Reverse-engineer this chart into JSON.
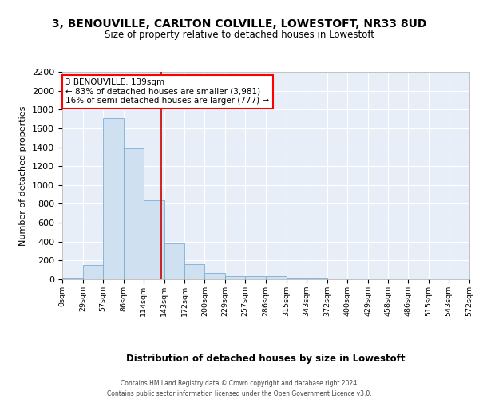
{
  "title": "3, BENOUVILLE, CARLTON COLVILLE, LOWESTOFT, NR33 8UD",
  "subtitle": "Size of property relative to detached houses in Lowestoft",
  "xlabel": "Distribution of detached houses by size in Lowestoft",
  "ylabel": "Number of detached properties",
  "bar_color": "#cfe0f0",
  "bar_edge_color": "#7aafd4",
  "background_color": "#e8eef8",
  "grid_color": "#ffffff",
  "bin_edges": [
    0,
    29,
    57,
    86,
    114,
    143,
    172,
    200,
    229,
    257,
    286,
    315,
    343,
    372,
    400,
    429,
    458,
    486,
    515,
    543,
    572
  ],
  "bar_heights": [
    15,
    155,
    1710,
    1390,
    840,
    380,
    165,
    65,
    35,
    30,
    30,
    20,
    15,
    0,
    0,
    0,
    0,
    0,
    0,
    0
  ],
  "tick_labels": [
    "0sqm",
    "29sqm",
    "57sqm",
    "86sqm",
    "114sqm",
    "143sqm",
    "172sqm",
    "200sqm",
    "229sqm",
    "257sqm",
    "286sqm",
    "315sqm",
    "343sqm",
    "372sqm",
    "400sqm",
    "429sqm",
    "458sqm",
    "486sqm",
    "515sqm",
    "543sqm",
    "572sqm"
  ],
  "red_line_x": 139,
  "annotation_title": "3 BENOUVILLE: 139sqm",
  "annotation_line1": "← 83% of detached houses are smaller (3,981)",
  "annotation_line2": "16% of semi-detached houses are larger (777) →",
  "ylim": [
    0,
    2200
  ],
  "yticks": [
    0,
    200,
    400,
    600,
    800,
    1000,
    1200,
    1400,
    1600,
    1800,
    2000,
    2200
  ],
  "footer_line1": "Contains HM Land Registry data © Crown copyright and database right 2024.",
  "footer_line2": "Contains public sector information licensed under the Open Government Licence v3.0."
}
